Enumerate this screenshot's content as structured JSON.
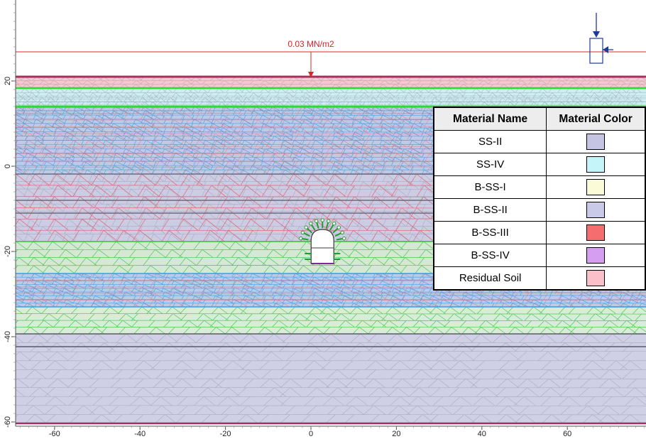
{
  "load": {
    "label": "0.03 MN/m2",
    "line_color": "#e0202a"
  },
  "axes": {
    "x_ticks": [
      "-60",
      "-40",
      "-20",
      "0",
      "20",
      "40",
      "60"
    ],
    "y_ticks": [
      "20",
      "0",
      "-20",
      "-40",
      "-60"
    ]
  },
  "legend": {
    "headers": [
      "Material Name",
      "Material Color"
    ],
    "rows": [
      {
        "name": "SS-II",
        "color": "#c5c5e3"
      },
      {
        "name": "SS-IV",
        "color": "#c6f5f9"
      },
      {
        "name": "B-SS-I",
        "color": "#fbfbd8"
      },
      {
        "name": "B-SS-II",
        "color": "#c9c9e8"
      },
      {
        "name": "B-SS-III",
        "color": "#f56d6e"
      },
      {
        "name": "B-SS-IV",
        "color": "#d59ef1"
      },
      {
        "name": "Residual Soil",
        "color": "#f9c0c9"
      }
    ]
  },
  "colors": {
    "mesh_gray": "#8a8a9a",
    "mesh_red": "#ef4a5a",
    "mesh_green": "#2ec43e",
    "mesh_blue": "#3aa0e8",
    "boundary_purple": "#a0305e",
    "green_line": "#26e026"
  }
}
